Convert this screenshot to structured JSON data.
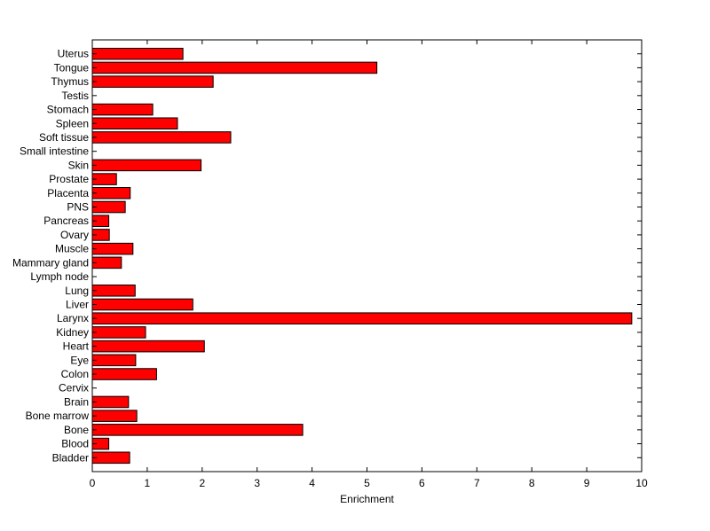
{
  "chart_data": {
    "type": "bar",
    "orientation": "horizontal",
    "xlabel": "Enrichment",
    "ylabel": "",
    "title": "",
    "xlim": [
      0,
      10
    ],
    "x_ticks": [
      "0",
      "1",
      "2",
      "3",
      "4",
      "5",
      "6",
      "7",
      "8",
      "9",
      "10"
    ],
    "grid": false,
    "bar_color": "#ff0000",
    "categories": [
      "Uterus",
      "Tongue",
      "Thymus",
      "Testis",
      "Stomach",
      "Spleen",
      "Soft tissue",
      "Small intestine",
      "Skin",
      "Prostate",
      "Placenta",
      "PNS",
      "Pancreas",
      "Ovary",
      "Muscle",
      "Mammary gland",
      "Lymph node",
      "Lung",
      "Liver",
      "Larynx",
      "Kidney",
      "Heart",
      "Eye",
      "Colon",
      "Cervix",
      "Brain",
      "Bone marrow",
      "Bone",
      "Blood",
      "Bladder"
    ],
    "values": [
      1.65,
      5.18,
      2.2,
      0,
      1.1,
      1.55,
      2.52,
      0,
      1.98,
      0.44,
      0.69,
      0.6,
      0.3,
      0.31,
      0.74,
      0.53,
      0,
      0.78,
      1.83,
      9.82,
      0.97,
      2.04,
      0.79,
      1.17,
      0,
      0.66,
      0.81,
      3.83,
      0.3,
      0.68
    ]
  }
}
